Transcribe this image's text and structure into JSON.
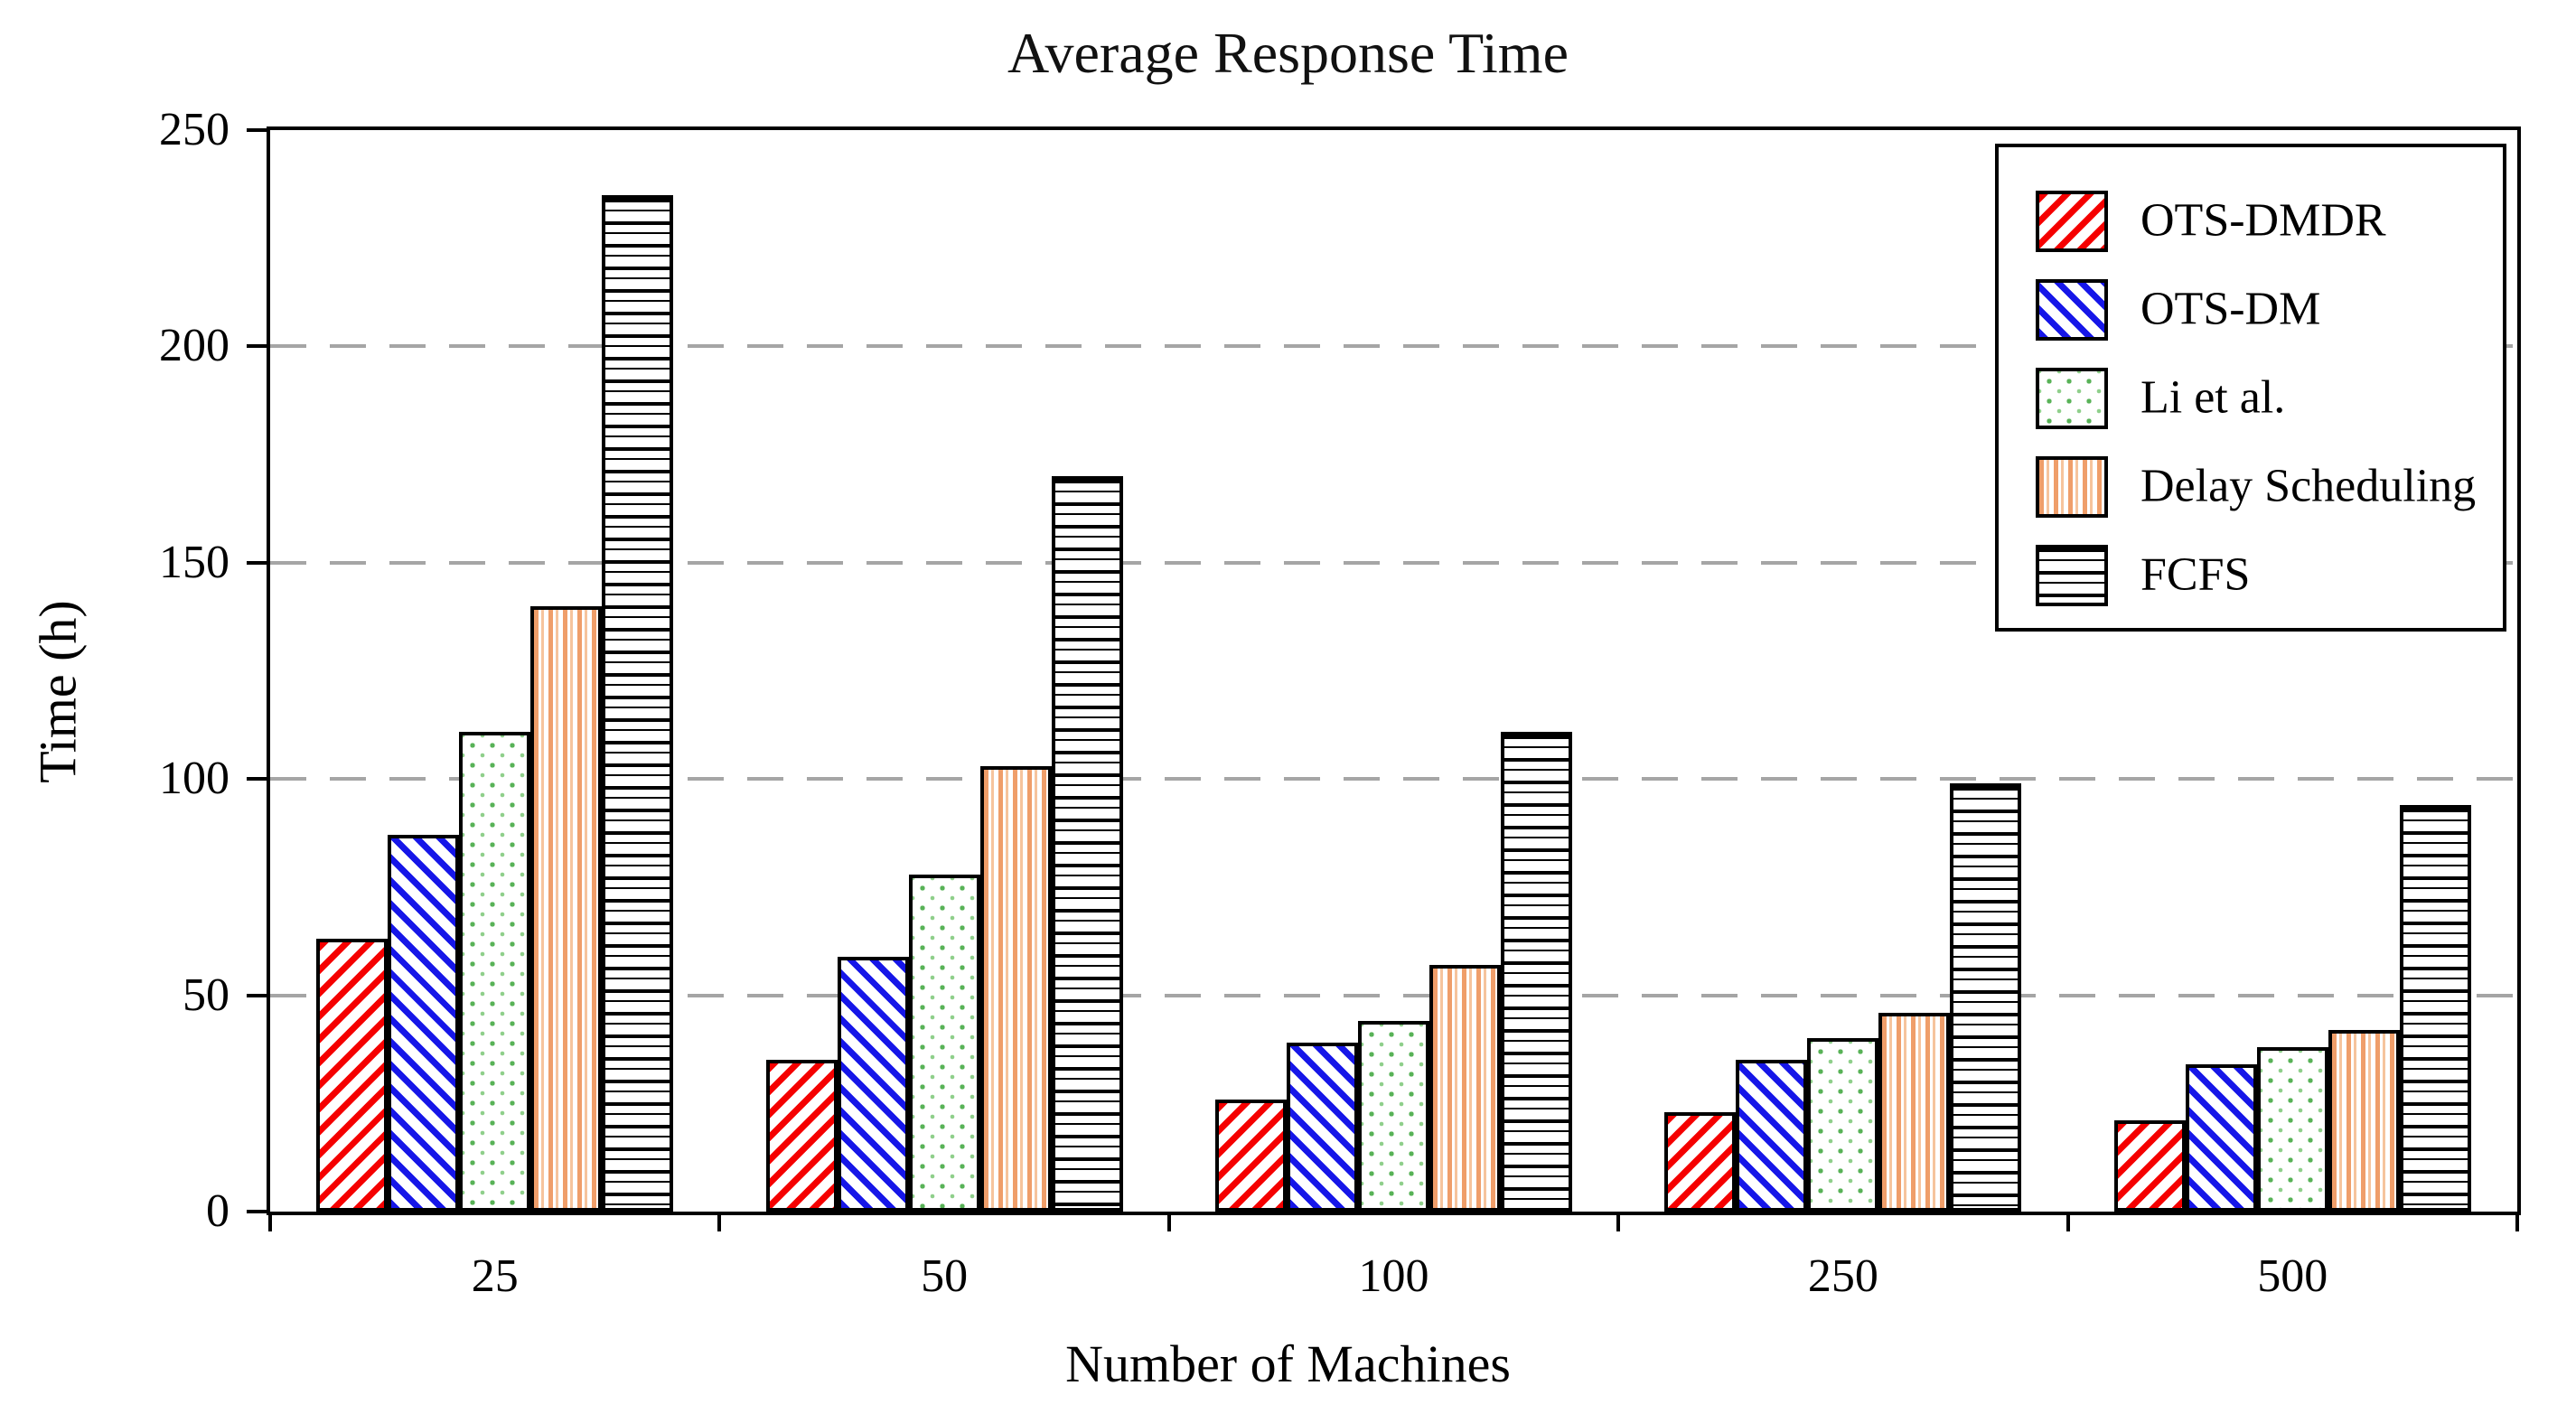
{
  "title": "Average Response Time",
  "xlabel": "Number of Machines",
  "ylabel": "Time (h)",
  "colors": {
    "ots_dmdr_red": "#f50000",
    "ots_dm_blue": "#1616e8",
    "li_green": "#58b257",
    "delay_orange": "#ef9e6a",
    "fcfs_black": "#000000",
    "gridline_gray": "#a5a5a5",
    "frame_black": "#000000",
    "background": "#ffffff"
  },
  "chart_data": {
    "type": "bar",
    "title": "Average Response Time",
    "xlabel": "Number of Machines",
    "ylabel": "Time (h)",
    "categories": [
      "25",
      "50",
      "100",
      "250",
      "500"
    ],
    "series": [
      {
        "name": "OTS-DMDR",
        "pattern": "diagonal-up-red",
        "values": [
          63,
          35,
          26,
          23,
          21
        ]
      },
      {
        "name": "OTS-DM",
        "pattern": "diagonal-down-blue",
        "values": [
          87,
          59,
          39,
          35,
          34
        ]
      },
      {
        "name": "Li et al.",
        "pattern": "dots-green",
        "values": [
          111,
          78,
          44,
          40,
          38
        ]
      },
      {
        "name": "Delay Scheduling",
        "pattern": "vertical-orange",
        "values": [
          140,
          103,
          57,
          46,
          42
        ]
      },
      {
        "name": "FCFS",
        "pattern": "horizontal-black",
        "values": [
          235,
          170,
          111,
          99,
          94
        ]
      }
    ],
    "ylim": [
      0,
      250
    ],
    "yticks": [
      0,
      50,
      100,
      150,
      200,
      250
    ],
    "grid": "horizontal-dashed-at-50-100-150-200",
    "legend_position": "top-right"
  }
}
